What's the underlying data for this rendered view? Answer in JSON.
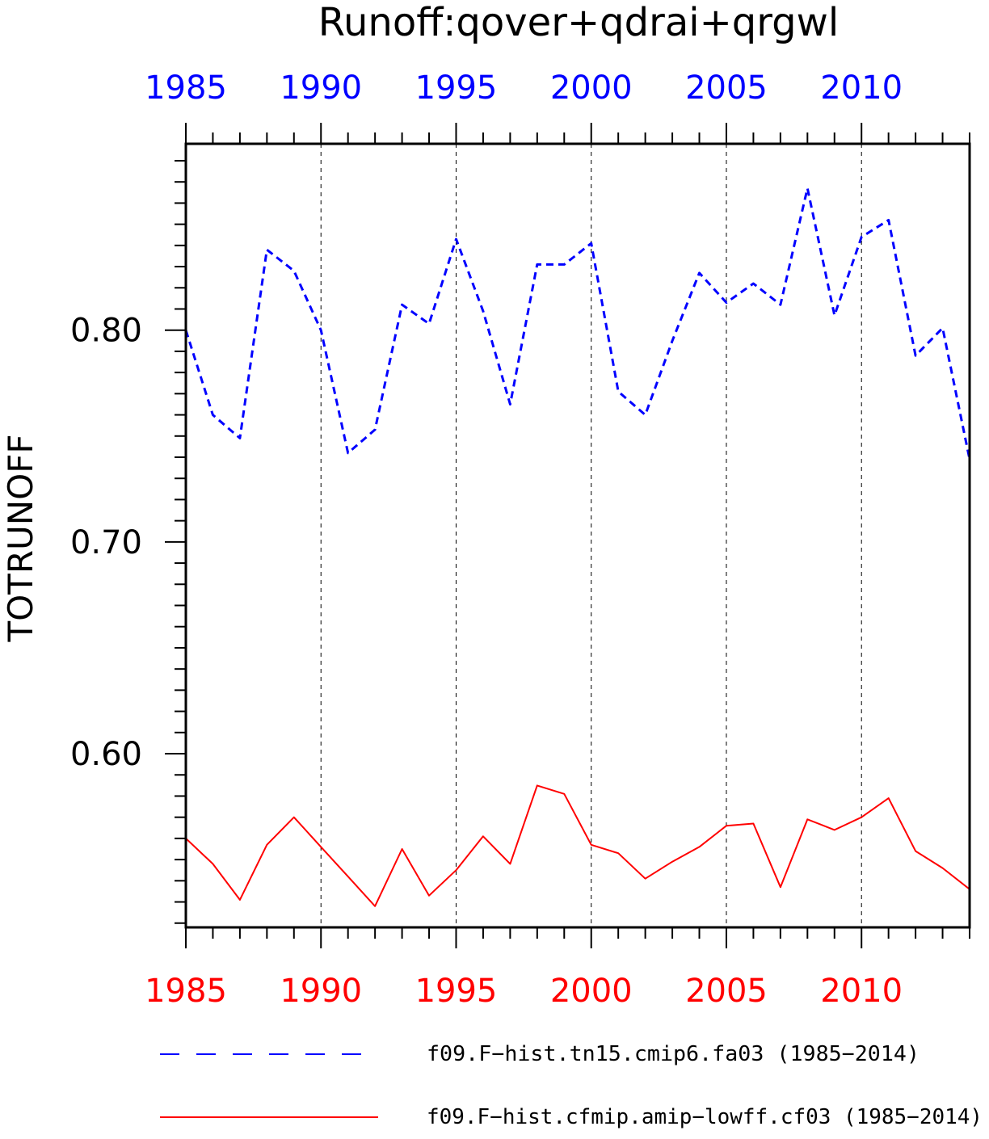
{
  "chart_data": {
    "type": "line",
    "title": "Runoff:qover+qdrai+qrgwl",
    "ylabel": "TOTRUNOFF",
    "xlabel": "",
    "xlim": [
      1985,
      2014
    ],
    "ylim": [
      0.518,
      0.888
    ],
    "x_ticks": [
      "1985",
      "1990",
      "1995",
      "2000",
      "2005",
      "2010"
    ],
    "y_ticks": [
      "0.60",
      "0.70",
      "0.80"
    ],
    "grid": "vertical dashed at major x ticks",
    "legend": "bottom",
    "x": [
      1985,
      1986,
      1987,
      1988,
      1989,
      1990,
      1991,
      1992,
      1993,
      1994,
      1995,
      1996,
      1997,
      1998,
      1999,
      2000,
      2001,
      2002,
      2003,
      2004,
      2005,
      2006,
      2007,
      2008,
      2009,
      2010,
      2011,
      2012,
      2013,
      2014
    ],
    "series": [
      {
        "name": "f09.F−hist.tn15.cmip6.fa03 (1985−2014)",
        "color": "#0000ff",
        "style": "dashed",
        "values": [
          0.8,
          0.76,
          0.749,
          0.838,
          0.828,
          0.8,
          0.742,
          0.753,
          0.812,
          0.803,
          0.843,
          0.809,
          0.765,
          0.831,
          0.831,
          0.841,
          0.771,
          0.76,
          0.795,
          0.827,
          0.813,
          0.822,
          0.812,
          0.867,
          0.807,
          0.844,
          0.852,
          0.788,
          0.801,
          0.739
        ]
      },
      {
        "name": "f09.F−hist.cfmip.amip−lowff.cf03 (1985−2014)",
        "color": "#ff0000",
        "style": "solid",
        "values": [
          0.56,
          0.548,
          0.531,
          0.557,
          0.57,
          0.556,
          0.542,
          0.528,
          0.555,
          0.533,
          0.545,
          0.561,
          0.548,
          0.585,
          0.581,
          0.557,
          0.553,
          0.541,
          0.549,
          0.556,
          0.566,
          0.567,
          0.537,
          0.569,
          0.564,
          0.57,
          0.579,
          0.554,
          0.546,
          0.536
        ]
      }
    ]
  }
}
